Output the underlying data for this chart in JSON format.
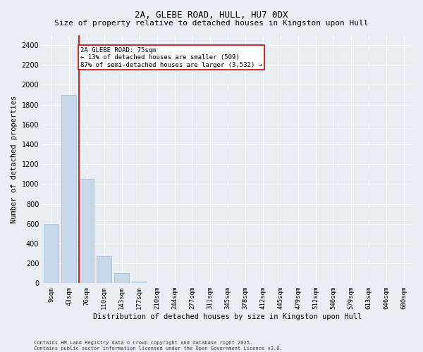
{
  "title": "2A, GLEBE ROAD, HULL, HU7 0DX",
  "subtitle": "Size of property relative to detached houses in Kingston upon Hull",
  "xlabel": "Distribution of detached houses by size in Kingston upon Hull",
  "ylabel": "Number of detached properties",
  "categories": [
    "9sqm",
    "43sqm",
    "76sqm",
    "110sqm",
    "143sqm",
    "177sqm",
    "210sqm",
    "244sqm",
    "277sqm",
    "311sqm",
    "345sqm",
    "378sqm",
    "412sqm",
    "445sqm",
    "479sqm",
    "512sqm",
    "546sqm",
    "579sqm",
    "613sqm",
    "646sqm",
    "680sqm"
  ],
  "values": [
    600,
    1900,
    1050,
    270,
    100,
    20,
    5,
    2,
    1,
    1,
    0,
    0,
    0,
    0,
    0,
    0,
    0,
    0,
    0,
    0,
    0
  ],
  "bar_color": "#c8d8e8",
  "bar_edgecolor": "#a0b8cc",
  "highlight_bar_index": 2,
  "highlight_line_color": "#cc0000",
  "annotation_text": "2A GLEBE ROAD: 75sqm\n← 13% of detached houses are smaller (509)\n87% of semi-detached houses are larger (3,532) →",
  "annotation_box_edgecolor": "#cc0000",
  "annotation_box_facecolor": "#ffffff",
  "ylim": [
    0,
    2500
  ],
  "yticks": [
    0,
    200,
    400,
    600,
    800,
    1000,
    1200,
    1400,
    1600,
    1800,
    2000,
    2200,
    2400
  ],
  "background_color": "#e8eef4",
  "plot_background": "#e8eef4",
  "title_fontsize": 9,
  "subtitle_fontsize": 8,
  "xlabel_fontsize": 7.5,
  "ylabel_fontsize": 7.5,
  "footer_line1": "Contains HM Land Registry data © Crown copyright and database right 2025.",
  "footer_line2": "Contains public sector information licensed under the Open Government Licence v3.0.",
  "grid_color": "#ffffff",
  "grid_linewidth": 0.8,
  "annotation_fontsize": 6.5,
  "tick_fontsize": 6.5,
  "ytick_fontsize": 7
}
